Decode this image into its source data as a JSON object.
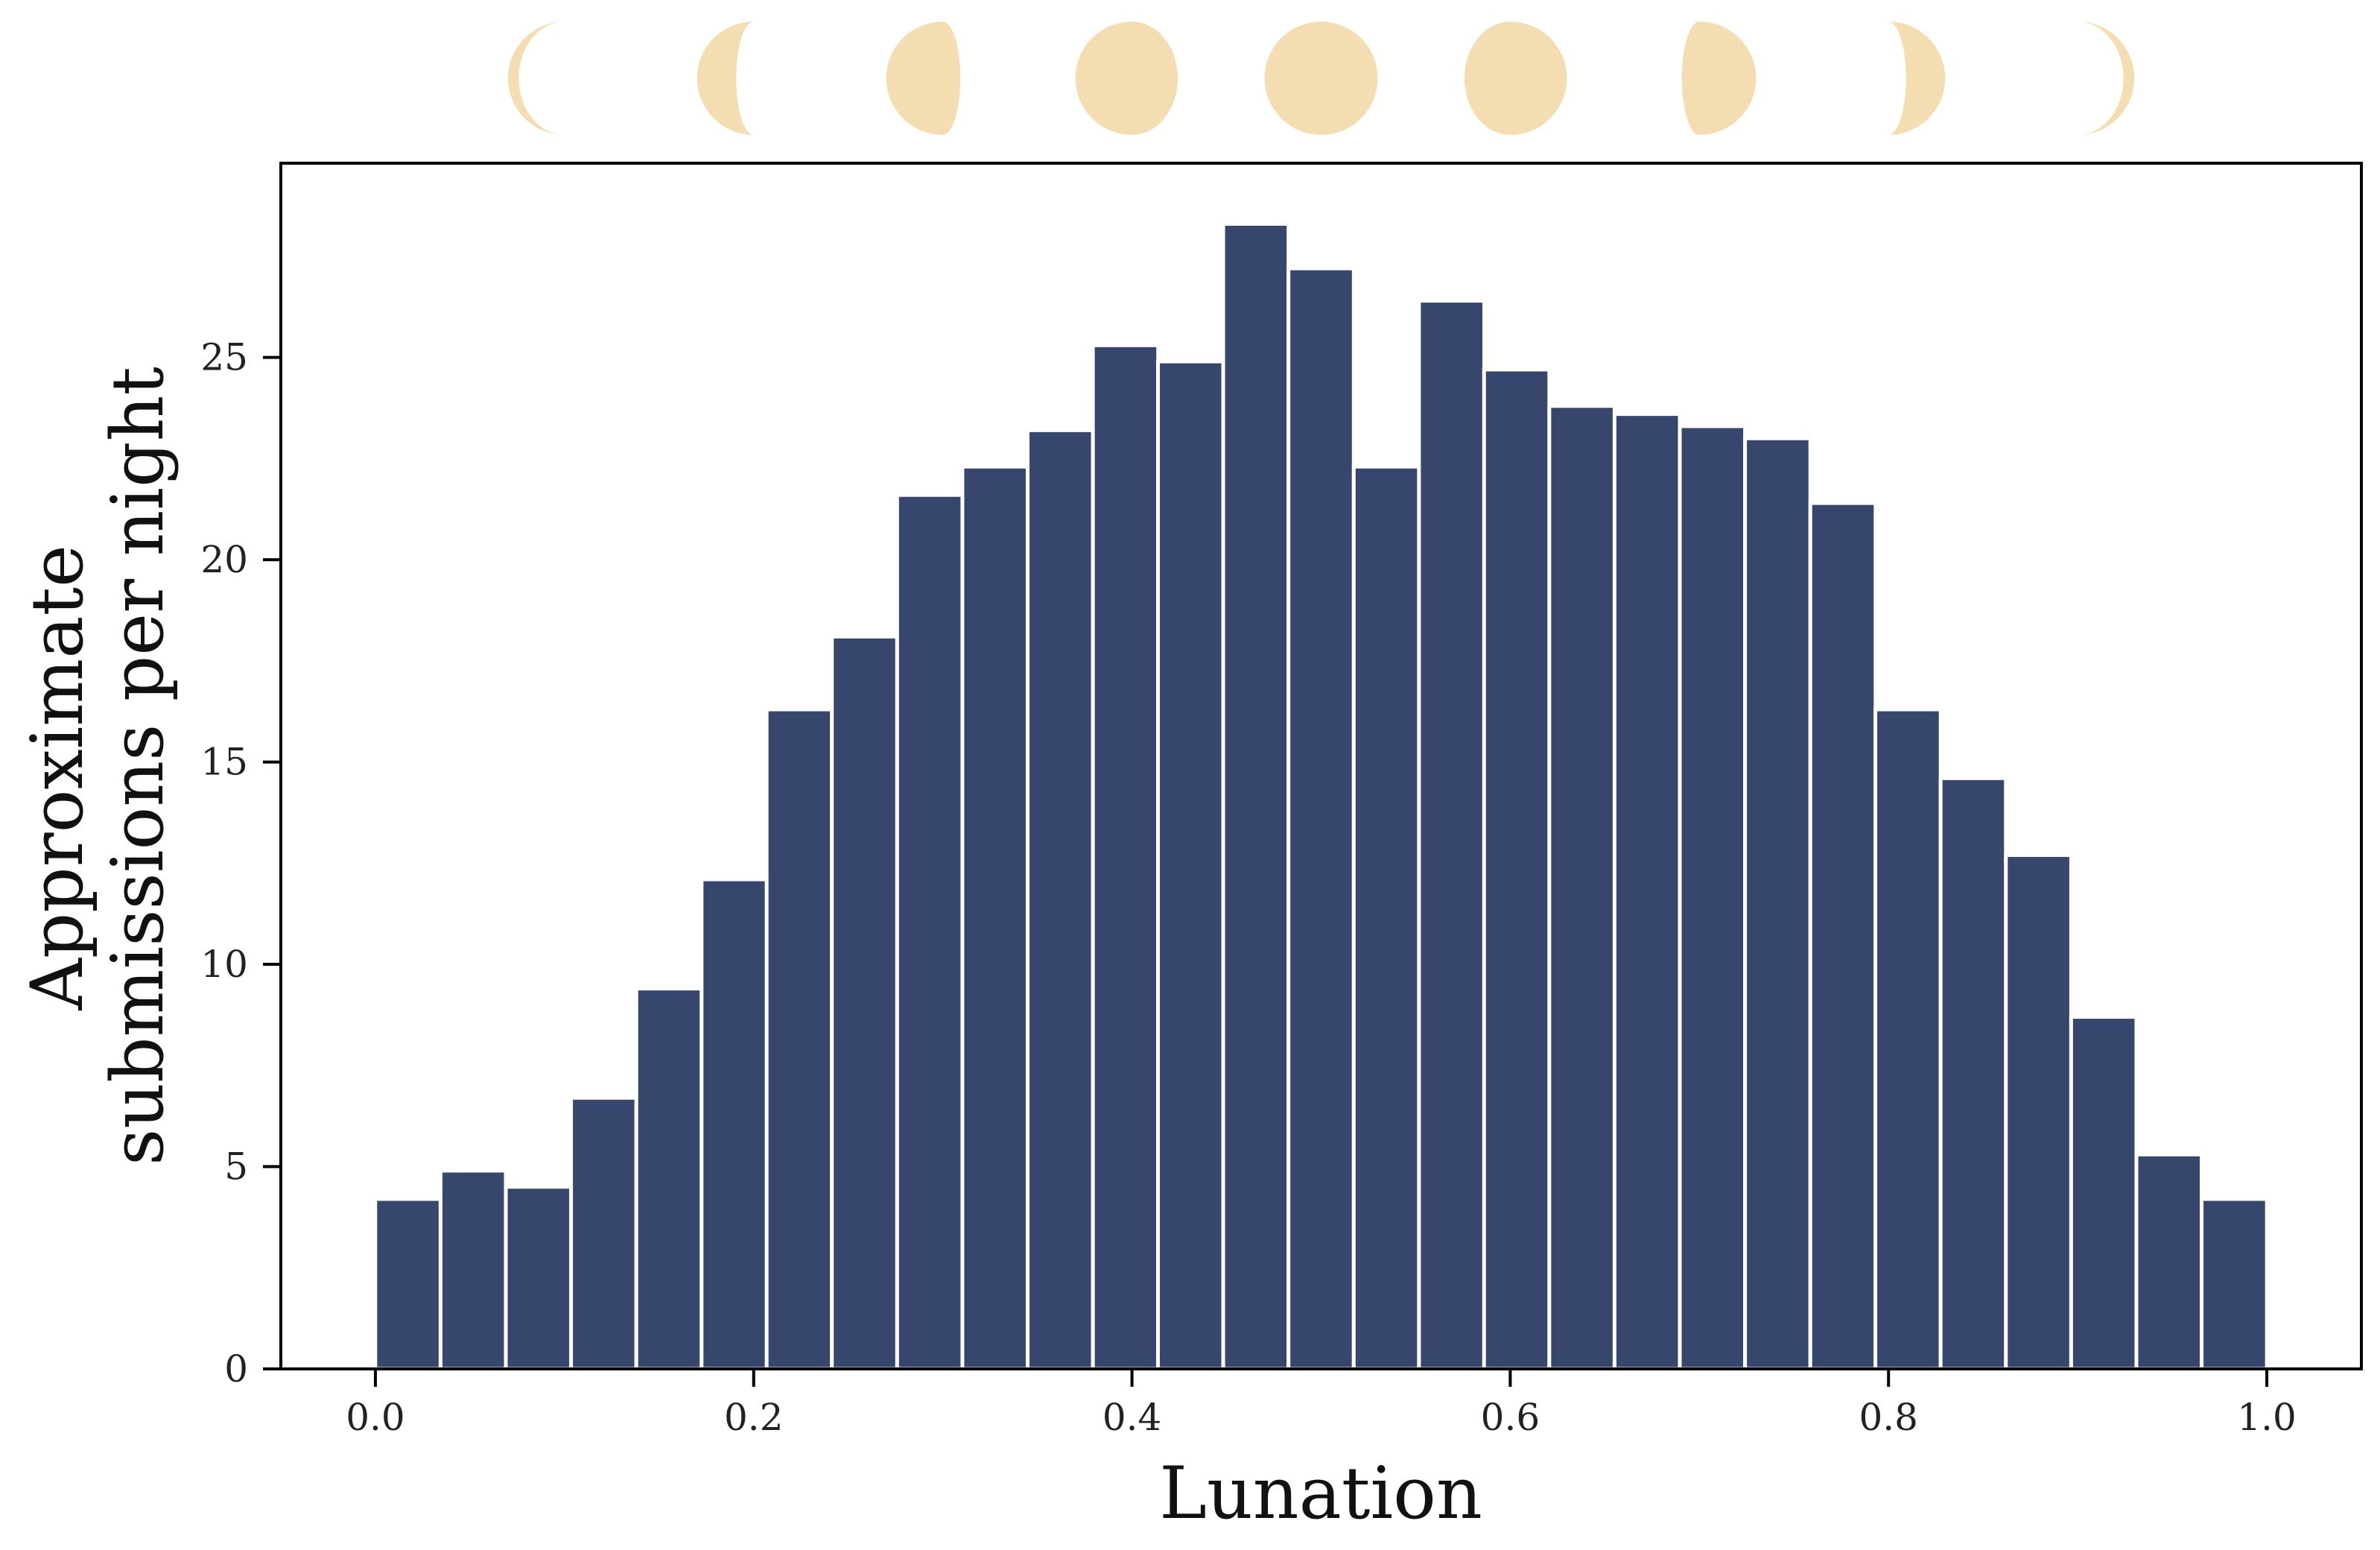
{
  "chart_data": {
    "type": "bar",
    "xlabel": "Lunation",
    "ylabel_lines": [
      "Approximate",
      "submissions per night"
    ],
    "xlim": [
      -0.05,
      1.05
    ],
    "ylim": [
      0,
      29.8
    ],
    "xticks": [
      0.0,
      0.2,
      0.4,
      0.6,
      0.8,
      1.0
    ],
    "xtick_labels": [
      "0.0",
      "0.2",
      "0.4",
      "0.6",
      "0.8",
      "1.0"
    ],
    "yticks": [
      0,
      5,
      10,
      15,
      20,
      25
    ],
    "ytick_labels": [
      "0",
      "5",
      "10",
      "15",
      "20",
      "25"
    ],
    "bin_width": 0.0345,
    "bin_centers": [
      0.0172,
      0.0517,
      0.0862,
      0.1207,
      0.1552,
      0.1897,
      0.2241,
      0.2586,
      0.2931,
      0.3276,
      0.3621,
      0.3966,
      0.431,
      0.4655,
      0.5,
      0.5345,
      0.569,
      0.6034,
      0.6379,
      0.6724,
      0.7069,
      0.7414,
      0.7759,
      0.8103,
      0.8448,
      0.8793,
      0.9138,
      0.9483,
      0.9828
    ],
    "values": [
      4.2,
      4.9,
      4.5,
      6.7,
      9.4,
      12.1,
      16.3,
      18.1,
      21.6,
      22.3,
      23.2,
      25.3,
      24.9,
      28.3,
      27.2,
      22.3,
      26.4,
      24.7,
      23.8,
      23.6,
      23.3,
      23.0,
      21.4,
      16.3,
      14.6,
      12.7,
      8.7,
      5.3,
      4.2
    ],
    "bar_color": "#36466c",
    "grid": false,
    "moon_phase_strip": {
      "position": "above plot",
      "color": "#f4ddb0",
      "phases": [
        0.0,
        0.1,
        0.2,
        0.3,
        0.4,
        0.5,
        0.6,
        0.7,
        0.8,
        0.9,
        1.0
      ]
    }
  }
}
